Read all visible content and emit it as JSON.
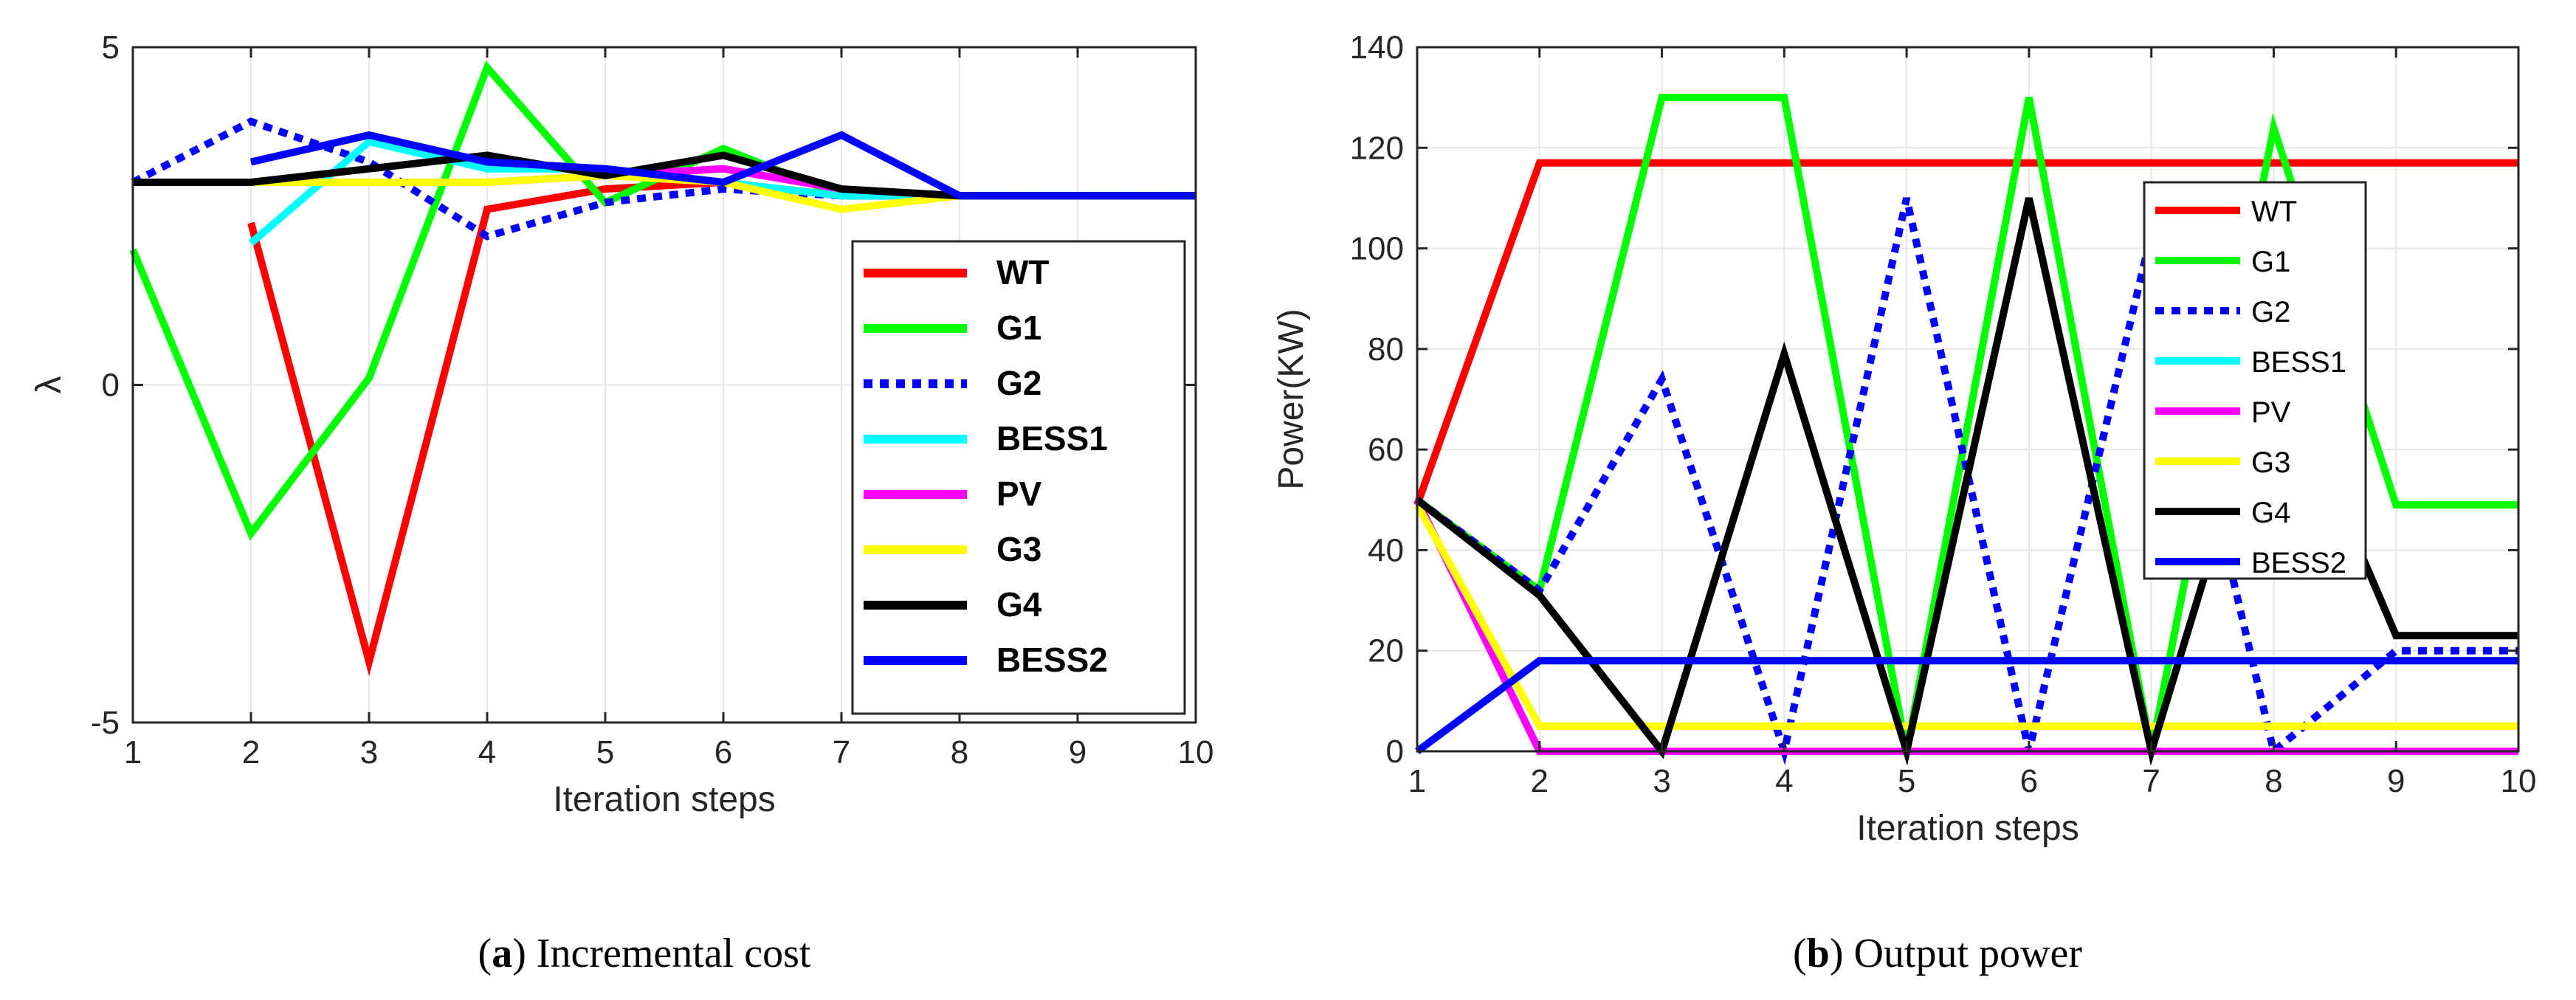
{
  "captions": [
    {
      "letter": "a",
      "text": ") Incremental cost"
    },
    {
      "letter": "b",
      "text": ") Output power"
    }
  ],
  "chart_data": [
    {
      "type": "line",
      "title": "",
      "xlabel": "Iteration steps",
      "ylabel": "λ",
      "xlim": [
        1,
        10
      ],
      "ylim": [
        -5,
        5
      ],
      "xticks": [
        "1",
        "2",
        "3",
        "4",
        "5",
        "6",
        "7",
        "8",
        "9",
        "10"
      ],
      "yticks": [
        "-5",
        "0",
        "5"
      ],
      "grid": true,
      "legend_position": "right",
      "legend_style": "bold",
      "series": [
        {
          "name": "WT",
          "color": "#ff0000",
          "dash": "solid",
          "x": [
            2,
            3,
            4,
            5,
            6,
            7,
            8,
            9,
            10
          ],
          "y": [
            2.4,
            -4.1,
            2.6,
            2.9,
            3.0,
            2.8,
            2.8,
            2.8,
            2.8
          ]
        },
        {
          "name": "G1",
          "color": "#00ff00",
          "dash": "solid",
          "x": [
            1,
            2,
            3,
            4,
            5,
            6,
            7,
            8,
            9,
            10
          ],
          "y": [
            2.0,
            -2.2,
            0.1,
            4.7,
            2.7,
            3.5,
            2.8,
            2.8,
            2.8,
            2.8
          ]
        },
        {
          "name": "G2",
          "color": "#0000ff",
          "dash": "dotted",
          "x": [
            1,
            2,
            3,
            4,
            5,
            6,
            7,
            8,
            9,
            10
          ],
          "y": [
            3.0,
            3.9,
            3.3,
            2.2,
            2.7,
            2.9,
            2.8,
            2.8,
            2.8,
            2.8
          ]
        },
        {
          "name": "BESS1",
          "color": "#00ffff",
          "dash": "solid",
          "x": [
            2,
            3,
            4,
            5,
            6,
            7,
            8,
            9,
            10
          ],
          "y": [
            2.1,
            3.6,
            3.2,
            3.2,
            3.0,
            2.8,
            2.8,
            2.8,
            2.8
          ]
        },
        {
          "name": "PV",
          "color": "#ff00ff",
          "dash": "solid",
          "x": [
            2,
            3,
            4,
            5,
            6,
            7,
            8,
            9,
            10
          ],
          "y": [
            3.0,
            3.0,
            3.0,
            3.1,
            3.2,
            2.9,
            2.8,
            2.8,
            2.8
          ]
        },
        {
          "name": "G3",
          "color": "#ffff00",
          "dash": "solid",
          "x": [
            1,
            2,
            3,
            4,
            5,
            6,
            7,
            8,
            9,
            10
          ],
          "y": [
            3.0,
            3.0,
            3.0,
            3.0,
            3.1,
            3.0,
            2.6,
            2.8,
            2.8,
            2.8
          ]
        },
        {
          "name": "G4",
          "color": "#000000",
          "dash": "solid",
          "x": [
            1,
            2,
            3,
            4,
            5,
            6,
            7,
            8,
            9,
            10
          ],
          "y": [
            3.0,
            3.0,
            3.2,
            3.4,
            3.1,
            3.4,
            2.9,
            2.8,
            2.8,
            2.8
          ]
        },
        {
          "name": "BESS2",
          "color": "#0000ff",
          "dash": "solid",
          "x": [
            2,
            3,
            4,
            5,
            6,
            7,
            8,
            9,
            10
          ],
          "y": [
            3.3,
            3.7,
            3.3,
            3.2,
            3.0,
            3.7,
            2.8,
            2.8,
            2.8
          ]
        }
      ]
    },
    {
      "type": "line",
      "title": "",
      "xlabel": "Iteration steps",
      "ylabel": "Power(KW)",
      "xlim": [
        1,
        10
      ],
      "ylim": [
        0,
        140
      ],
      "xticks": [
        "1",
        "2",
        "3",
        "4",
        "5",
        "6",
        "7",
        "8",
        "9",
        "10"
      ],
      "yticks": [
        "0",
        "20",
        "40",
        "60",
        "80",
        "100",
        "120",
        "140"
      ],
      "grid": true,
      "legend_position": "right",
      "legend_style": "normal",
      "series": [
        {
          "name": "WT",
          "color": "#ff0000",
          "dash": "solid",
          "x": [
            1,
            2,
            3,
            4,
            5,
            6,
            7,
            8,
            9,
            10
          ],
          "y": [
            49,
            117,
            117,
            117,
            117,
            117,
            117,
            117,
            117,
            117
          ]
        },
        {
          "name": "G1",
          "color": "#00ff00",
          "dash": "solid",
          "x": [
            1,
            2,
            3,
            4,
            5,
            6,
            7,
            8,
            9,
            10
          ],
          "y": [
            50,
            32,
            130,
            130,
            0,
            130,
            0,
            124,
            49,
            49
          ]
        },
        {
          "name": "G2",
          "color": "#0000ff",
          "dash": "dotted",
          "x": [
            1,
            2,
            3,
            4,
            5,
            6,
            7,
            8,
            9,
            10
          ],
          "y": [
            50,
            32,
            74,
            0,
            110,
            0,
            103,
            0,
            20,
            20
          ]
        },
        {
          "name": "BESS1",
          "color": "#00ffff",
          "dash": "solid",
          "x": [
            1,
            2,
            3,
            4,
            5,
            6,
            7,
            8,
            9,
            10
          ],
          "y": [
            0,
            18,
            18,
            18,
            18,
            18,
            18,
            18,
            18,
            18
          ]
        },
        {
          "name": "PV",
          "color": "#ff00ff",
          "dash": "solid",
          "x": [
            1,
            2,
            3,
            4,
            5,
            6,
            7,
            8,
            9,
            10
          ],
          "y": [
            50,
            0,
            0,
            0,
            0,
            0,
            0,
            0,
            0,
            0
          ]
        },
        {
          "name": "G3",
          "color": "#ffff00",
          "dash": "solid",
          "x": [
            1,
            2,
            3,
            4,
            5,
            6,
            7,
            8,
            9,
            10
          ],
          "y": [
            49,
            5,
            5,
            5,
            5,
            5,
            5,
            5,
            5,
            5
          ]
        },
        {
          "name": "G4",
          "color": "#000000",
          "dash": "solid",
          "x": [
            1,
            2,
            3,
            4,
            5,
            6,
            7,
            8,
            9,
            10
          ],
          "y": [
            50,
            31,
            0,
            79,
            0,
            110,
            0,
            80,
            23,
            23
          ]
        },
        {
          "name": "BESS2",
          "color": "#0000ff",
          "dash": "solid",
          "x": [
            1,
            2,
            3,
            4,
            5,
            6,
            7,
            8,
            9,
            10
          ],
          "y": [
            0,
            18,
            18,
            18,
            18,
            18,
            18,
            18,
            18,
            18
          ]
        }
      ]
    }
  ]
}
